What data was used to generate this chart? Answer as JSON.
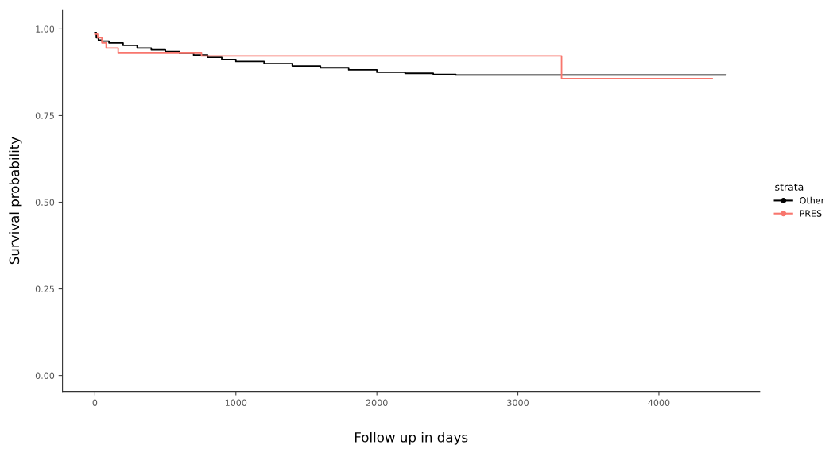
{
  "chart_data": {
    "type": "step",
    "xlabel": "Follow up in days",
    "ylabel": "Survival probability",
    "legend_title": "strata",
    "legend": "right",
    "grid": false,
    "marker": "none",
    "xlim": [
      -230,
      4715
    ],
    "ylim": [
      -0.046,
      1.055
    ],
    "xticks": [
      0,
      1000,
      2000,
      3000,
      4000
    ],
    "yticks": [
      {
        "value": 0,
        "label": "0.00"
      },
      {
        "value": 0.25,
        "label": "0.25"
      },
      {
        "value": 0.5,
        "label": "0.50"
      },
      {
        "value": 0.75,
        "label": "0.75"
      },
      {
        "value": 1,
        "label": "1.00"
      }
    ],
    "series": [
      {
        "name": "Other",
        "color": "#000000",
        "x": [
          0,
          10,
          25,
          50,
          100,
          200,
          300,
          400,
          500,
          600,
          700,
          800,
          900,
          1000,
          1200,
          1400,
          1600,
          1800,
          2000,
          2200,
          2400,
          2560,
          4475
        ],
        "values": [
          0.99,
          0.975,
          0.968,
          0.965,
          0.96,
          0.953,
          0.945,
          0.94,
          0.935,
          0.93,
          0.925,
          0.918,
          0.912,
          0.906,
          0.9,
          0.893,
          0.888,
          0.882,
          0.875,
          0.872,
          0.869,
          0.867,
          0.867
        ]
      },
      {
        "name": "PRES",
        "color": "#f8766d",
        "x": [
          0,
          20,
          50,
          80,
          140,
          165,
          756,
          3310,
          4378
        ],
        "values": [
          0.985,
          0.975,
          0.96,
          0.945,
          0.945,
          0.93,
          0.922,
          0.857,
          0.857
        ]
      }
    ]
  }
}
